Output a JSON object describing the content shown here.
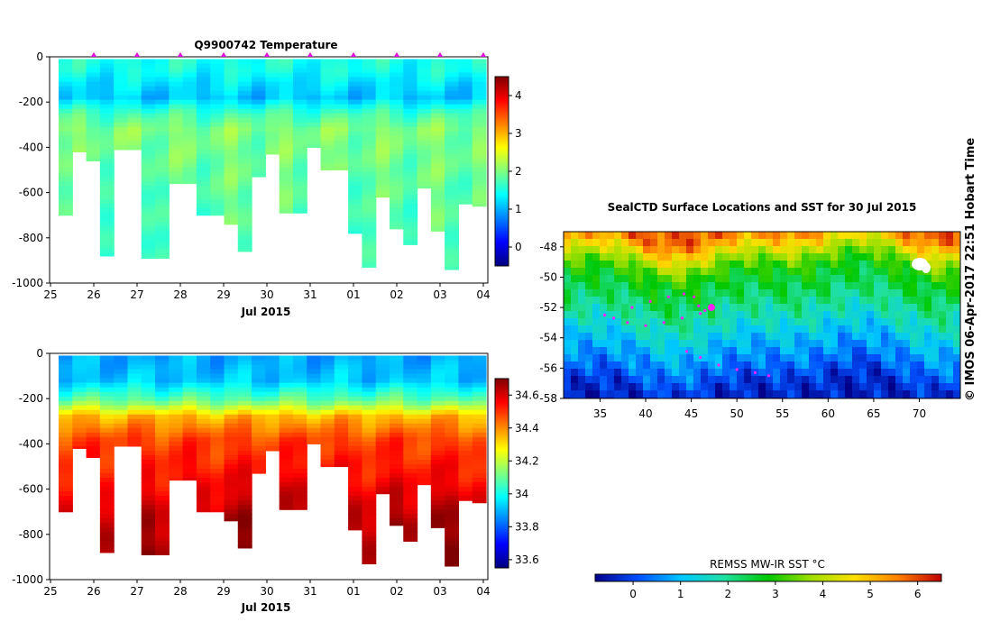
{
  "credit": "© IMOS 06-Apr-2017 22:51 Hobart Time",
  "colormaps": {
    "jet": [
      "#00007f",
      "#0000ff",
      "#007fff",
      "#00ffff",
      "#7fff7f",
      "#ffff00",
      "#ff7f00",
      "#ff0000",
      "#7f0000"
    ],
    "sst": [
      "#00008b",
      "#0050ff",
      "#00c8ff",
      "#20e0a0",
      "#00c800",
      "#a0e000",
      "#ffe000",
      "#ff8000",
      "#c00000"
    ]
  },
  "chart_data": [
    {
      "id": "temperature",
      "type": "heatmap",
      "title": "Q9900742  Temperature",
      "xlabel": "Jul 2015",
      "x_ticks": [
        "25",
        "26",
        "27",
        "28",
        "29",
        "30",
        "31",
        "01",
        "02",
        "03",
        "04"
      ],
      "y_ticks": [
        "0",
        "-200",
        "-400",
        "-600",
        "-800",
        "-1000"
      ],
      "ylim": [
        -1000,
        0
      ],
      "colorbar_ticks": [
        "0",
        "1",
        "2",
        "3",
        "4"
      ],
      "colorbar_range": [
        -0.5,
        4.5
      ],
      "profile_depths_m": [
        700,
        420,
        460,
        880,
        410,
        410,
        890,
        890,
        560,
        560,
        700,
        700,
        740,
        860,
        530,
        430,
        690,
        690,
        400,
        500,
        500,
        780,
        930,
        620,
        760,
        830,
        580,
        770,
        940,
        650,
        660
      ],
      "surface_markers": [
        "26",
        "27",
        "28",
        "29",
        "30",
        "31",
        "01",
        "02",
        "03",
        "04"
      ],
      "value_profile": [
        [
          0,
          1.5
        ],
        [
          60,
          1.45
        ],
        [
          120,
          1.25
        ],
        [
          180,
          1.1
        ],
        [
          250,
          1.7
        ],
        [
          320,
          2.0
        ],
        [
          400,
          1.95
        ],
        [
          600,
          1.85
        ],
        [
          1000,
          1.75
        ]
      ]
    },
    {
      "id": "salinity",
      "type": "heatmap",
      "title": "",
      "xlabel": "Jul 2015",
      "x_ticks": [
        "25",
        "26",
        "27",
        "28",
        "29",
        "30",
        "31",
        "01",
        "02",
        "03",
        "04"
      ],
      "y_ticks": [
        "0",
        "-200",
        "-400",
        "-600",
        "-800",
        "-1000"
      ],
      "ylim": [
        -1000,
        0
      ],
      "colorbar_ticks": [
        "33.6",
        "33.8",
        "34",
        "34.2",
        "34.4",
        "34.6"
      ],
      "colorbar_range": [
        33.55,
        34.7
      ],
      "profile_depths_m": [
        700,
        420,
        460,
        880,
        410,
        410,
        890,
        890,
        560,
        560,
        700,
        700,
        740,
        860,
        530,
        430,
        690,
        690,
        400,
        500,
        500,
        780,
        930,
        620,
        760,
        830,
        580,
        770,
        940,
        650,
        660
      ],
      "value_profile": [
        [
          0,
          33.88
        ],
        [
          120,
          33.92
        ],
        [
          210,
          34.1
        ],
        [
          280,
          34.35
        ],
        [
          380,
          34.48
        ],
        [
          550,
          34.55
        ],
        [
          750,
          34.65
        ],
        [
          1000,
          34.7
        ]
      ]
    },
    {
      "id": "sst_map",
      "type": "heatmap",
      "title": "SealCTD Surface Locations and SST for 30 Jul 2015",
      "x_ticks": [
        "35",
        "40",
        "45",
        "50",
        "55",
        "60",
        "65",
        "70"
      ],
      "y_ticks": [
        "-48",
        "-50",
        "-52",
        "-54",
        "-56",
        "-58"
      ],
      "xlim": [
        31,
        74.5
      ],
      "ylim": [
        -58,
        -47
      ],
      "colorbar_label": "REMSS MW-IR SST °C",
      "colorbar_ticks": [
        "0",
        "1",
        "2",
        "3",
        "4",
        "5",
        "6"
      ],
      "colorbar_range": [
        -0.8,
        6.5
      ],
      "sst_by_latitude": [
        [
          -47,
          5.8
        ],
        [
          -48,
          4.6
        ],
        [
          -49,
          3.4
        ],
        [
          -50,
          2.7
        ],
        [
          -51,
          2.4
        ],
        [
          -52,
          2.0
        ],
        [
          -53,
          1.6
        ],
        [
          -54,
          1.1
        ],
        [
          -55,
          0.7
        ],
        [
          -56,
          0.3
        ],
        [
          -57,
          -0.2
        ],
        [
          -58,
          -0.4
        ]
      ],
      "seal_track": [
        [
          38.5,
          -52.0
        ],
        [
          40.5,
          -51.6
        ],
        [
          42.5,
          -51.3
        ],
        [
          44.2,
          -51.1
        ],
        [
          45.3,
          -51.3
        ],
        [
          45.8,
          -51.9
        ],
        [
          46.5,
          -52.2
        ],
        [
          47.2,
          -52.0
        ],
        [
          46.0,
          -52.4
        ],
        [
          44.0,
          -52.7
        ],
        [
          42.0,
          -53.0
        ],
        [
          40.0,
          -53.2
        ],
        [
          38.0,
          -53.0
        ],
        [
          36.5,
          -52.7
        ],
        [
          35.5,
          -52.5
        ]
      ],
      "seal_track2": [
        [
          44.5,
          -54.9
        ],
        [
          46.0,
          -55.3
        ],
        [
          48.0,
          -55.8
        ],
        [
          50.0,
          -56.1
        ],
        [
          52.0,
          -56.3
        ],
        [
          53.5,
          -56.5
        ]
      ],
      "current_location": [
        47.2,
        -52.0
      ]
    }
  ]
}
